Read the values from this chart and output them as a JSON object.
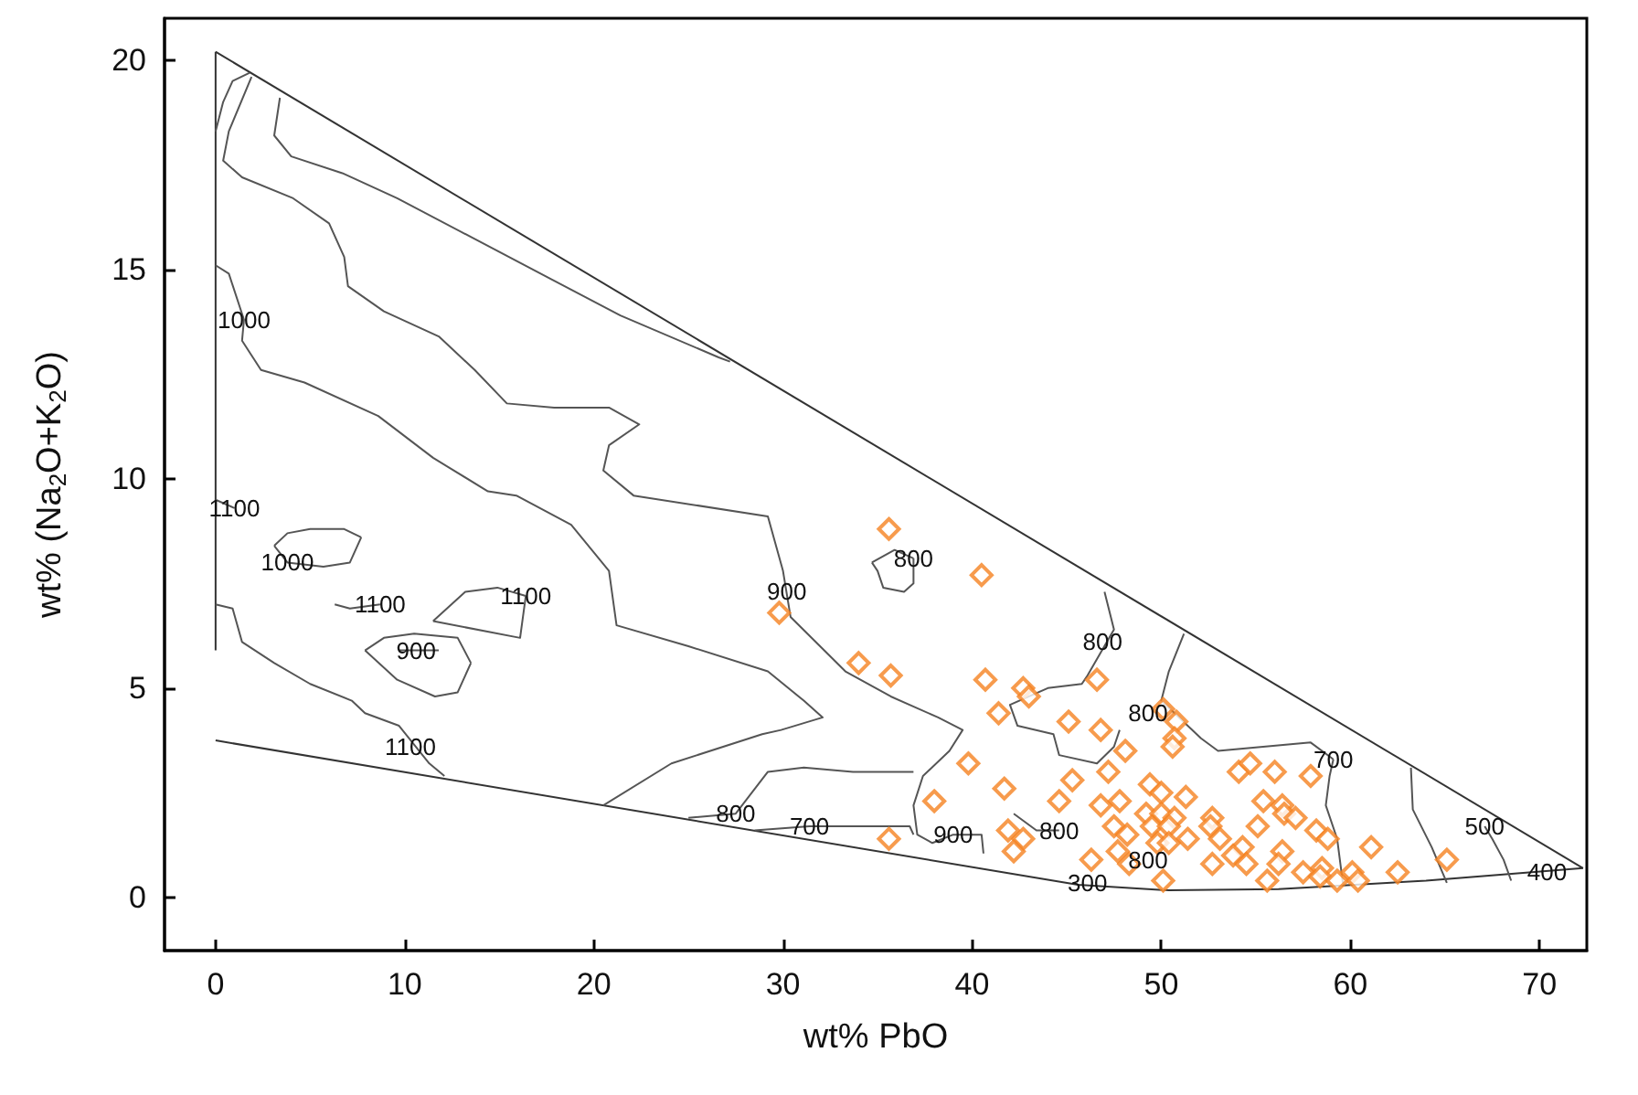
{
  "chart_data": {
    "type": "scatter",
    "xlabel": "wt% PbO",
    "ylabel": "wt% (Na$_{2}$O+K$_{2}$O)",
    "xlim": [
      -2.7,
      72.5
    ],
    "ylim": [
      -1.27,
      21
    ],
    "xticks": [
      0,
      10,
      20,
      30,
      40,
      50,
      60,
      70
    ],
    "yticks": [
      0,
      5,
      10,
      15,
      20
    ],
    "series": [
      {
        "type": "line",
        "color": "#333333",
        "x": [
          0,
          72.3
        ],
        "values": [
          20.2,
          0.7
        ]
      },
      {
        "type": "line",
        "color": "#333333",
        "x": [
          0,
          45.6,
          50.4,
          56.2,
          64,
          72.3
        ],
        "values": [
          3.75,
          0.3,
          0.17,
          0.2,
          0.4,
          0.7
        ]
      },
      {
        "type": "line",
        "color": "#333333",
        "x": [
          0,
          0
        ],
        "values": [
          20.2,
          5.9
        ]
      },
      {
        "type": "line",
        "color": "#555555",
        "x": [
          1.8,
          0.9,
          0.4,
          0
        ],
        "values": [
          19.7,
          19.5,
          19.0,
          18.3
        ]
      },
      {
        "type": "line",
        "color": "#555555",
        "x": [
          3.4,
          3.1,
          4.0,
          6.7,
          9.6,
          13.4,
          17.6,
          21.4,
          26.6,
          27.2
        ],
        "values": [
          19.1,
          18.2,
          17.7,
          17.3,
          16.7,
          15.8,
          14.8,
          13.9,
          12.9,
          12.8
        ]
      },
      {
        "type": "line",
        "color": "#555555",
        "x": [
          1.9,
          0.7,
          0.4,
          1.4,
          4.1,
          6.0,
          6.8,
          7.0,
          8.9,
          11.8,
          13.7,
          15.4,
          17.9,
          20.8,
          22.4,
          20.8,
          20.5,
          22.1,
          29.2,
          30.0,
          30.4,
          33.3,
          35.7,
          38.2,
          39.5,
          38.8,
          37.4,
          36.9,
          37.1,
          37.9,
          39.0,
          40.5,
          40.6
        ],
        "values": [
          19.6,
          18.3,
          17.6,
          17.2,
          16.7,
          16.1,
          15.3,
          14.6,
          14.0,
          13.4,
          12.6,
          11.8,
          11.7,
          11.7,
          11.3,
          10.8,
          10.2,
          9.6,
          9.1,
          7.8,
          6.7,
          5.4,
          4.8,
          4.3,
          4.0,
          3.5,
          2.9,
          2.2,
          1.5,
          1.3,
          1.5,
          1.5,
          1.05
        ]
      },
      {
        "type": "line",
        "color": "#555555",
        "x": [
          0,
          0.7,
          1.5,
          1.4,
          2.4,
          4.7,
          8.6,
          11.5,
          14.4,
          15.9,
          18.8,
          20.8,
          21.2,
          25.0,
          29.2,
          31.1,
          32.1,
          29.9,
          28.9,
          24.1,
          20.5
        ],
        "values": [
          15.1,
          14.9,
          13.8,
          13.3,
          12.6,
          12.3,
          11.5,
          10.5,
          9.7,
          9.6,
          8.9,
          7.8,
          6.5,
          6.0,
          5.4,
          4.7,
          4.3,
          4.0,
          3.9,
          3.2,
          2.2
        ]
      },
      {
        "type": "line",
        "color": "#555555",
        "x": [
          25.0,
          27.5,
          29.2,
          31.1,
          33.7,
          36.9
        ],
        "values": [
          1.9,
          2.0,
          3.0,
          3.1,
          3.0,
          3.0
        ]
      },
      {
        "type": "line",
        "color": "#555555",
        "x": [
          28.5,
          31.4,
          33.4,
          36.7,
          36.9
        ],
        "values": [
          1.6,
          1.7,
          1.7,
          1.7,
          1.5
        ]
      },
      {
        "type": "line",
        "color": "#555555",
        "x": [
          0,
          0.9,
          1.4,
          3.1,
          5.0,
          7.2,
          7.9,
          9.7,
          11.3,
          12.1
        ],
        "values": [
          7.0,
          6.9,
          6.1,
          5.6,
          5.1,
          4.7,
          4.4,
          4.1,
          3.2,
          2.9
        ]
      },
      {
        "type": "line",
        "color": "#555555",
        "x": [
          3.1,
          3.8,
          5.0,
          6.8,
          7.7
        ],
        "values": [
          8.4,
          8.7,
          8.8,
          8.8,
          8.6
        ]
      },
      {
        "type": "line",
        "color": "#555555",
        "x": [
          3.1,
          3.8,
          5.7,
          7.1,
          7.7
        ],
        "values": [
          8.4,
          8.0,
          7.9,
          8.0,
          8.6
        ]
      },
      {
        "type": "line",
        "color": "#555555",
        "x": [
          11.5,
          13.2,
          14.9,
          16.4
        ],
        "values": [
          6.6,
          7.3,
          7.4,
          7.2
        ]
      },
      {
        "type": "line",
        "color": "#555555",
        "x": [
          11.5,
          16.1,
          16.4
        ],
        "values": [
          6.6,
          6.2,
          7.2
        ]
      },
      {
        "type": "line",
        "color": "#555555",
        "x": [
          7.9,
          8.9,
          10.5,
          12.8,
          13.5
        ],
        "values": [
          5.9,
          6.2,
          6.3,
          6.2,
          5.6
        ]
      },
      {
        "type": "line",
        "color": "#555555",
        "x": [
          7.9,
          9.6,
          11.6,
          12.8,
          13.5
        ],
        "values": [
          5.9,
          5.2,
          4.8,
          4.9,
          5.6
        ]
      },
      {
        "type": "line",
        "color": "#555555",
        "x": [
          34.7,
          35.9,
          36.9
        ],
        "values": [
          8.0,
          8.3,
          8.1
        ]
      },
      {
        "type": "line",
        "color": "#555555",
        "x": [
          34.7,
          35.0,
          35.3,
          36.4,
          36.9,
          36.9
        ],
        "values": [
          8.0,
          7.8,
          7.4,
          7.3,
          7.5,
          8.1
        ]
      },
      {
        "type": "line",
        "color": "#555555",
        "x": [
          47.0,
          47.5,
          46.1,
          45.8,
          44.0,
          42.0,
          42.4,
          44.3,
          44.6,
          46.6,
          47.5,
          47.8
        ],
        "values": [
          7.3,
          6.4,
          5.3,
          5.1,
          5.0,
          4.6,
          4.1,
          3.9,
          3.4,
          3.2,
          3.6,
          4.0
        ]
      },
      {
        "type": "line",
        "color": "#555555",
        "x": [
          51.2,
          50.4,
          50.0,
          52.1,
          53.0,
          57.9,
          59.1
        ],
        "values": [
          6.3,
          5.4,
          4.7,
          3.8,
          3.5,
          3.7,
          3.3
        ]
      },
      {
        "type": "line",
        "color": "#555555",
        "x": [
          59.1,
          58.9,
          58.7,
          59.3,
          59.6
        ],
        "values": [
          3.3,
          2.9,
          2.2,
          1.4,
          0.35
        ]
      },
      {
        "type": "line",
        "color": "#555555",
        "x": [
          63.2,
          63.3,
          64.3,
          65.1
        ],
        "values": [
          3.1,
          2.1,
          1.2,
          0.35
        ]
      },
      {
        "type": "line",
        "color": "#555555",
        "x": [
          67.1,
          67.5,
          68.1,
          68.5
        ],
        "values": [
          1.7,
          1.4,
          0.9,
          0.4
        ]
      },
      {
        "type": "line",
        "color": "#555555",
        "x": [
          0,
          1.0
        ],
        "values": [
          9.5,
          9.3
        ]
      },
      {
        "type": "line",
        "color": "#555555",
        "x": [
          6.3,
          7.1,
          8.7
        ],
        "values": [
          7.0,
          6.9,
          7.0
        ]
      },
      {
        "type": "line",
        "color": "#555555",
        "x": [
          9.7,
          10.6,
          11.8
        ],
        "values": [
          5.9,
          5.9,
          5.9
        ]
      },
      {
        "type": "line",
        "color": "#555555",
        "x": [
          42.2,
          43.4,
          44.6
        ],
        "values": [
          2.0,
          1.6,
          1.6
        ]
      },
      {
        "color": "#f58220",
        "marker": "diamond",
        "x": [
          35.6,
          40.5,
          29.8,
          34.0,
          35.7,
          40.7,
          42.7,
          43.0,
          46.6,
          41.4,
          45.1,
          46.8,
          50.1,
          50.8,
          50.7,
          50.6,
          48.1,
          39.8,
          47.2,
          41.7,
          45.3,
          44.6,
          49.4,
          50.0,
          51.3,
          38.0,
          46.8,
          47.8,
          49.2,
          50.0,
          50.7,
          35.6,
          41.9,
          42.7,
          42.2,
          46.3,
          47.5,
          48.2,
          49.5,
          50.4,
          51.4,
          47.7,
          48.3,
          49.8,
          50.4,
          50.1,
          54.1,
          54.7,
          56.0,
          57.9,
          55.4,
          56.4,
          56.5,
          57.1,
          52.7,
          52.6,
          55.1,
          58.2,
          58.8,
          53.1,
          54.3,
          52.7,
          53.8,
          54.5,
          56.4,
          56.2,
          57.5,
          58.5,
          58.4,
          59.3,
          60.1,
          60.4,
          61.1,
          62.5,
          65.1,
          55.6
        ],
        "values": [
          8.8,
          7.7,
          6.8,
          5.6,
          5.3,
          5.2,
          5.0,
          4.8,
          5.2,
          4.4,
          4.2,
          4.0,
          4.5,
          4.2,
          3.8,
          3.6,
          3.5,
          3.2,
          3.0,
          2.6,
          2.8,
          2.3,
          2.7,
          2.5,
          2.4,
          2.3,
          2.2,
          2.3,
          2.0,
          2.0,
          1.9,
          1.4,
          1.6,
          1.4,
          1.1,
          0.9,
          1.7,
          1.5,
          1.7,
          1.7,
          1.4,
          1.1,
          0.8,
          1.3,
          1.3,
          0.4,
          3.0,
          3.2,
          3.0,
          2.9,
          2.3,
          2.2,
          2.0,
          1.9,
          1.9,
          1.7,
          1.7,
          1.6,
          1.4,
          1.4,
          1.2,
          0.8,
          1.0,
          0.8,
          1.1,
          0.8,
          0.6,
          0.7,
          0.5,
          0.4,
          0.6,
          0.4,
          1.2,
          0.6,
          0.9,
          0.4
        ]
      }
    ],
    "annotations": [
      {
        "text": "1000",
        "x": 1.5,
        "y": 13.8
      },
      {
        "text": "1100",
        "x": 1.0,
        "y": 9.3
      },
      {
        "text": "1000",
        "x": 3.8,
        "y": 8.0
      },
      {
        "text": "1100",
        "x": 8.7,
        "y": 7.0
      },
      {
        "text": "1100",
        "x": 16.4,
        "y": 7.2
      },
      {
        "text": "900",
        "x": 10.6,
        "y": 5.9
      },
      {
        "text": "1100",
        "x": 10.3,
        "y": 3.6
      },
      {
        "text": "900",
        "x": 30.2,
        "y": 7.3
      },
      {
        "text": "800",
        "x": 36.9,
        "y": 8.1
      },
      {
        "text": "800",
        "x": 46.9,
        "y": 6.1
      },
      {
        "text": "800",
        "x": 49.3,
        "y": 4.4
      },
      {
        "text": "700",
        "x": 59.1,
        "y": 3.3
      },
      {
        "text": "500",
        "x": 67.1,
        "y": 1.7
      },
      {
        "text": "400",
        "x": 70.4,
        "y": 0.6
      },
      {
        "text": "800",
        "x": 27.5,
        "y": 2.0
      },
      {
        "text": "700",
        "x": 31.4,
        "y": 1.7
      },
      {
        "text": "900",
        "x": 39.0,
        "y": 1.5
      },
      {
        "text": "800",
        "x": 44.6,
        "y": 1.6
      },
      {
        "text": "300",
        "x": 46.1,
        "y": 0.35
      },
      {
        "text": "800",
        "x": 49.3,
        "y": 0.9
      }
    ]
  }
}
